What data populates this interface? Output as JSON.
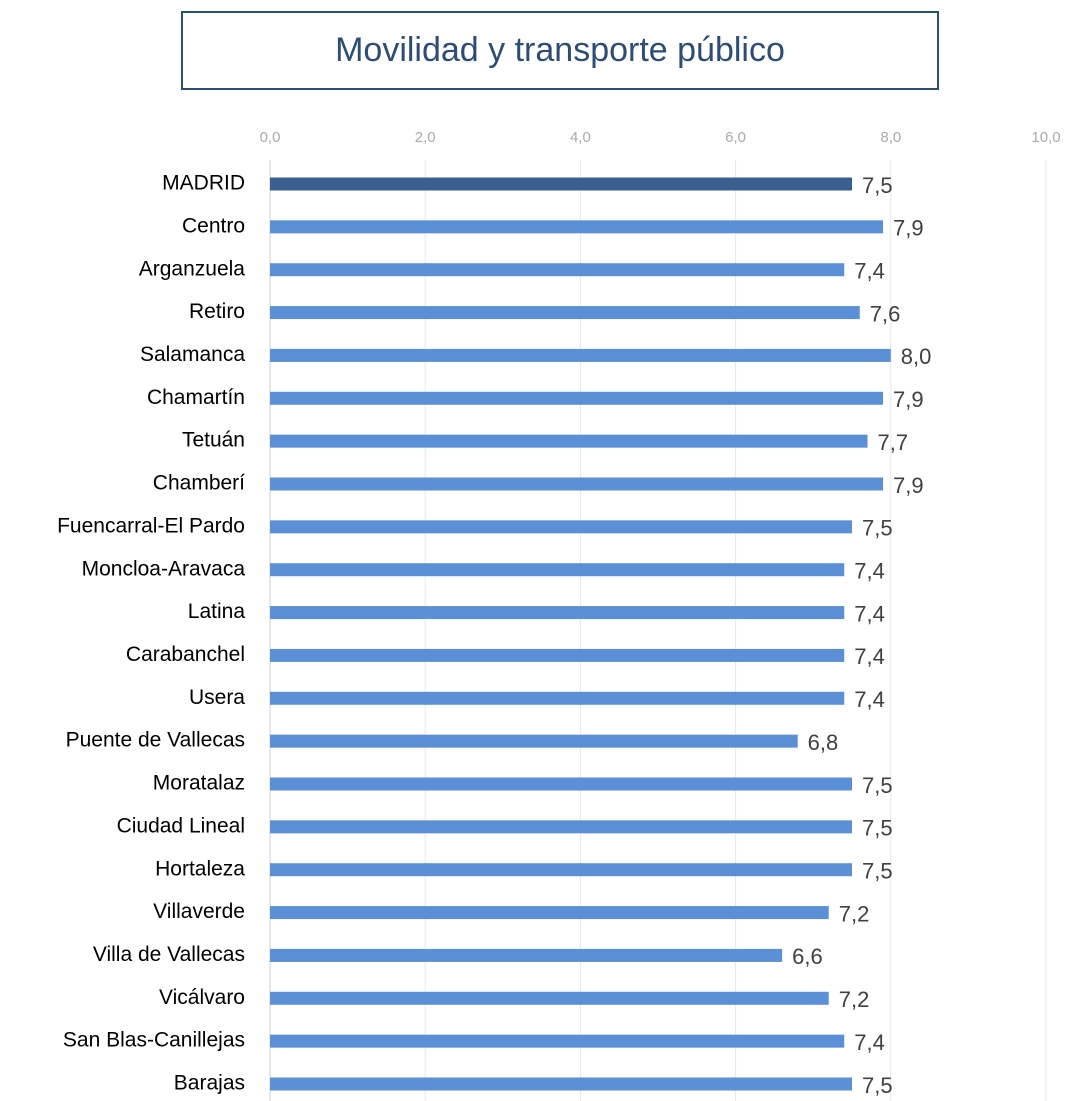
{
  "chart_data": {
    "type": "bar",
    "orientation": "horizontal",
    "title": "Movilidad y transporte público",
    "categories": [
      "MADRID",
      "Centro",
      "Arganzuela",
      "Retiro",
      "Salamanca",
      "Chamartín",
      "Tetuán",
      "Chamberí",
      "Fuencarral-El Pardo",
      "Moncloa-Aravaca",
      "Latina",
      "Carabanchel",
      "Usera",
      "Puente de Vallecas",
      "Moratalaz",
      "Ciudad Lineal",
      "Hortaleza",
      "Villaverde",
      "Villa de Vallecas",
      "Vicálvaro",
      "San Blas-Canillejas",
      "Barajas"
    ],
    "values": [
      7.5,
      7.9,
      7.4,
      7.6,
      8.0,
      7.9,
      7.7,
      7.9,
      7.5,
      7.4,
      7.4,
      7.4,
      7.4,
      6.8,
      7.5,
      7.5,
      7.5,
      7.2,
      6.6,
      7.2,
      7.4,
      7.5
    ],
    "value_labels": [
      "7,5",
      "7,9",
      "7,4",
      "7,6",
      "8,0",
      "7,9",
      "7,7",
      "7,9",
      "7,5",
      "7,4",
      "7,4",
      "7,4",
      "7,4",
      "6,8",
      "7,5",
      "7,5",
      "7,5",
      "7,2",
      "6,6",
      "7,2",
      "7,4",
      "7,5"
    ],
    "colors": [
      "#3b5f8e",
      "#5b8fd6",
      "#5b8fd6",
      "#5b8fd6",
      "#5b8fd6",
      "#5b8fd6",
      "#5b8fd6",
      "#5b8fd6",
      "#5b8fd6",
      "#5b8fd6",
      "#5b8fd6",
      "#5b8fd6",
      "#5b8fd6",
      "#5b8fd6",
      "#5b8fd6",
      "#5b8fd6",
      "#5b8fd6",
      "#5b8fd6",
      "#5b8fd6",
      "#5b8fd6",
      "#5b8fd6",
      "#5b8fd6"
    ],
    "xlim": [
      0,
      10
    ],
    "xticks": [
      {
        "value": 0,
        "label": "0,0"
      },
      {
        "value": 2,
        "label": "2,0"
      },
      {
        "value": 4,
        "label": "4,0"
      },
      {
        "value": 6,
        "label": "6,0"
      },
      {
        "value": 8,
        "label": "8,0"
      },
      {
        "value": 10,
        "label": "10,0"
      }
    ],
    "grid": true
  }
}
